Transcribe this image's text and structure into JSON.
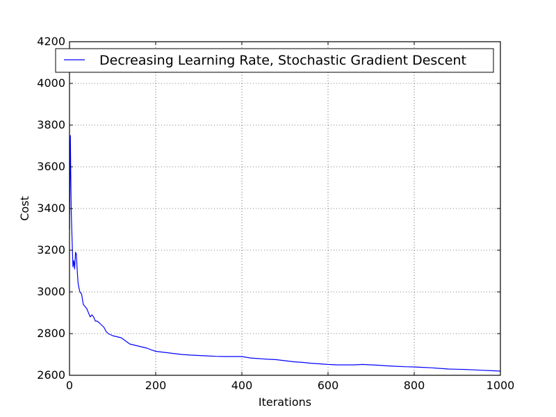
{
  "chart_data": {
    "type": "line",
    "title": "",
    "xlabel": "Iterations",
    "ylabel": "Cost",
    "xlim": [
      0,
      1000
    ],
    "ylim": [
      2600,
      4200
    ],
    "xticks": [
      "0",
      "200",
      "400",
      "600",
      "800",
      "1000"
    ],
    "yticks": [
      "2600",
      "2800",
      "3000",
      "3200",
      "3400",
      "3600",
      "3800",
      "4000",
      "4200"
    ],
    "grid": true,
    "legend": {
      "position": "top",
      "entries": [
        "Decreasing Learning Rate, Stochastic Gradient Descent"
      ]
    },
    "series": [
      {
        "name": "Decreasing Learning Rate, Stochastic Gradient Descent",
        "color": "#0000ff",
        "x": [
          0,
          2,
          3,
          4,
          6,
          8,
          10,
          12,
          14,
          16,
          18,
          20,
          24,
          28,
          32,
          36,
          40,
          44,
          48,
          52,
          56,
          60,
          64,
          70,
          75,
          80,
          85,
          90,
          100,
          110,
          120,
          130,
          140,
          150,
          160,
          170,
          180,
          190,
          200,
          220,
          240,
          260,
          280,
          300,
          320,
          340,
          360,
          380,
          400,
          420,
          440,
          460,
          480,
          500,
          520,
          540,
          560,
          580,
          600,
          620,
          640,
          660,
          680,
          700,
          720,
          740,
          760,
          780,
          800,
          820,
          840,
          860,
          880,
          900,
          920,
          940,
          960,
          980,
          1000
        ],
        "y": [
          3300,
          3750,
          3560,
          3390,
          3250,
          3120,
          3150,
          3110,
          3190,
          3180,
          3100,
          3040,
          3000,
          2990,
          2940,
          2930,
          2920,
          2900,
          2880,
          2890,
          2880,
          2860,
          2860,
          2850,
          2840,
          2830,
          2810,
          2800,
          2790,
          2785,
          2780,
          2765,
          2750,
          2745,
          2740,
          2735,
          2730,
          2722,
          2715,
          2710,
          2705,
          2700,
          2697,
          2695,
          2693,
          2691,
          2690,
          2690,
          2690,
          2683,
          2680,
          2677,
          2675,
          2670,
          2665,
          2662,
          2658,
          2655,
          2652,
          2650,
          2650,
          2650,
          2652,
          2650,
          2648,
          2645,
          2643,
          2641,
          2640,
          2638,
          2636,
          2633,
          2630,
          2629,
          2628,
          2626,
          2624,
          2622,
          2620
        ]
      }
    ]
  }
}
